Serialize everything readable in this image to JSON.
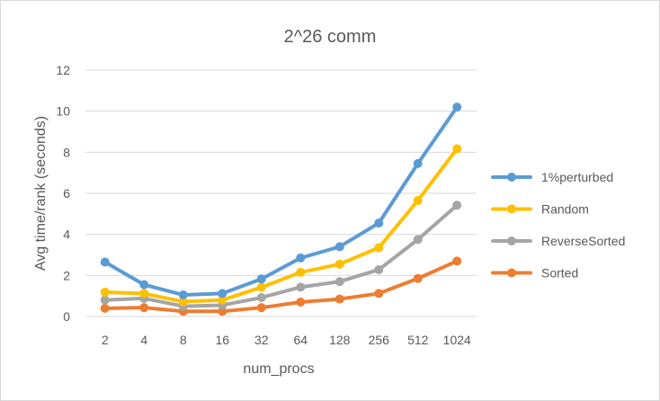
{
  "chart_data": {
    "type": "line",
    "title": "2^26 comm",
    "xlabel": "num_procs",
    "ylabel": "Avg time/rank (seconds)",
    "categories": [
      "2",
      "4",
      "8",
      "16",
      "32",
      "64",
      "128",
      "256",
      "512",
      "1024"
    ],
    "ylim": [
      0,
      12
    ],
    "yticks": [
      "0",
      "2",
      "4",
      "6",
      "8",
      "10",
      "12"
    ],
    "grid": true,
    "legend_position": "right",
    "series": [
      {
        "name": "1%perturbed",
        "color": "#5b9bd5",
        "values": [
          2.65,
          1.55,
          1.05,
          1.12,
          1.83,
          2.85,
          3.4,
          4.55,
          7.45,
          10.2
        ]
      },
      {
        "name": "Random",
        "color": "#ffc000",
        "values": [
          1.18,
          1.12,
          0.72,
          0.8,
          1.42,
          2.15,
          2.55,
          3.35,
          5.65,
          8.17
        ]
      },
      {
        "name": "ReverseSorted",
        "color": "#a5a5a5",
        "values": [
          0.8,
          0.88,
          0.5,
          0.55,
          0.92,
          1.43,
          1.7,
          2.28,
          3.75,
          5.42
        ]
      },
      {
        "name": "Sorted",
        "color": "#ed7d31",
        "values": [
          0.4,
          0.43,
          0.25,
          0.25,
          0.43,
          0.7,
          0.85,
          1.12,
          1.85,
          2.7
        ]
      }
    ]
  }
}
